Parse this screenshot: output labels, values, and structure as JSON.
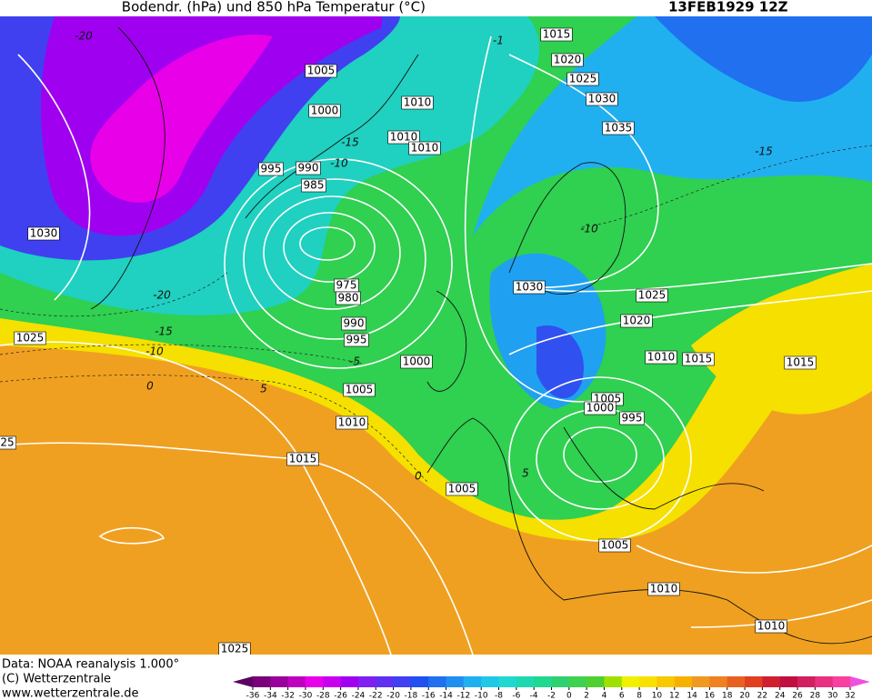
{
  "header": {
    "title": "Bodendr. (hPa) und 850 hPa Temperatur (°C)",
    "date": "13FEB1929 12Z"
  },
  "isobar_labels": [
    "1015",
    "1020",
    "1025",
    "1030",
    "1035",
    "1005",
    "1000",
    "1010",
    "1010",
    "1010",
    "995",
    "990",
    "985",
    "1030",
    "975",
    "980",
    "990",
    "995",
    "1000",
    "1025",
    "1005",
    "1010",
    "1015",
    "1030",
    "1025",
    "1020",
    "1010",
    "1015",
    "1015",
    "1005",
    "1000",
    "995",
    "1005",
    "1005",
    "1010",
    "1010",
    "1025",
    "25"
  ],
  "temperature_labels": [
    "-20",
    "-1",
    "-15",
    "-10",
    "-15",
    "-10",
    "-20",
    "-15",
    "-10",
    "-5",
    "5",
    "0",
    "0",
    "5"
  ],
  "footer": [
    "Data: NOAA reanalysis 1.000°",
    "(C) Wetterzentrale",
    "www.wetterzentrale.de"
  ],
  "colorbar": {
    "ticks": [
      -36,
      -34,
      -32,
      -30,
      -28,
      -26,
      -24,
      -22,
      -20,
      -18,
      -16,
      -14,
      -12,
      -10,
      -8,
      -6,
      -4,
      -2,
      0,
      2,
      4,
      6,
      8,
      10,
      12,
      14,
      16,
      18,
      20,
      22,
      24,
      26,
      28,
      30,
      32
    ],
    "colors": [
      "#5a0060",
      "#780078",
      "#9a009a",
      "#c000c0",
      "#e800e8",
      "#c800f0",
      "#a000f0",
      "#8020f0",
      "#6030f0",
      "#4040f0",
      "#2050f0",
      "#2070f0",
      "#2090f0",
      "#20b0f0",
      "#20c8e8",
      "#20d8d0",
      "#20d8b0",
      "#20d890",
      "#30d070",
      "#40d050",
      "#50d030",
      "#a0e000",
      "#f0f000",
      "#f8e000",
      "#f8c800",
      "#f8b000",
      "#f09820",
      "#f08020",
      "#e86020",
      "#e04020",
      "#d02030",
      "#c01040",
      "#d02060",
      "#e83080",
      "#f840a0",
      "#f050e0"
    ]
  }
}
